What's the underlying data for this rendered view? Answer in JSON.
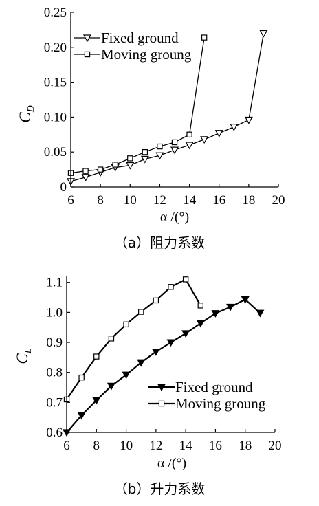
{
  "chart_data": [
    {
      "type": "line",
      "title": "",
      "ylabel": "C",
      "ylabel_sub": "D",
      "xlabel": "α /(°)",
      "caption": "（a）阻力系数",
      "xlim": [
        6,
        20
      ],
      "ylim": [
        0,
        0.25
      ],
      "xticks": [
        "6",
        "8",
        "10",
        "12",
        "14",
        "16",
        "18",
        "20"
      ],
      "yticks": [
        "0",
        "0.05",
        "0.10",
        "0.15",
        "0.20",
        "0.25"
      ],
      "legend_position": "top-left",
      "series": [
        {
          "name": "Fixed ground",
          "marker": "triangle-down",
          "x": [
            6,
            7,
            8,
            9,
            10,
            11,
            12,
            13,
            14,
            15,
            16,
            17,
            18,
            19
          ],
          "y": [
            0.008,
            0.014,
            0.021,
            0.028,
            0.031,
            0.04,
            0.045,
            0.053,
            0.06,
            0.068,
            0.077,
            0.086,
            0.096,
            0.22
          ]
        },
        {
          "name": "Moving groung",
          "marker": "square",
          "x": [
            6,
            7,
            8,
            9,
            10,
            11,
            12,
            13,
            14,
            15
          ],
          "y": [
            0.02,
            0.023,
            0.025,
            0.032,
            0.041,
            0.05,
            0.058,
            0.064,
            0.075,
            0.214
          ]
        }
      ]
    },
    {
      "type": "line",
      "title": "",
      "ylabel": "C",
      "ylabel_sub": "L",
      "xlabel": "α /(°)",
      "caption": "（b）升力系数",
      "xlim": [
        6,
        20
      ],
      "ylim": [
        0.6,
        1.12
      ],
      "xticks": [
        "6",
        "8",
        "10",
        "12",
        "14",
        "16",
        "18",
        "20"
      ],
      "yticks": [
        "0.6",
        "0.7",
        "0.8",
        "0.9",
        "1.0",
        "1.1"
      ],
      "legend_position": "bottom-right",
      "series": [
        {
          "name": "Fixed ground",
          "marker": "triangle-down-filled",
          "x": [
            6,
            7,
            8,
            9,
            10,
            11,
            12,
            13,
            14,
            15,
            16,
            17,
            18,
            19
          ],
          "y": [
            0.6,
            0.657,
            0.707,
            0.755,
            0.792,
            0.833,
            0.869,
            0.9,
            0.93,
            0.964,
            0.997,
            1.018,
            1.043,
            0.998
          ]
        },
        {
          "name": "Moving groung",
          "marker": "square",
          "x": [
            6,
            7,
            8,
            9,
            10,
            11,
            12,
            13,
            14,
            15
          ],
          "y": [
            0.71,
            0.783,
            0.853,
            0.913,
            0.96,
            1.002,
            1.04,
            1.085,
            1.11,
            1.023
          ]
        }
      ]
    }
  ]
}
